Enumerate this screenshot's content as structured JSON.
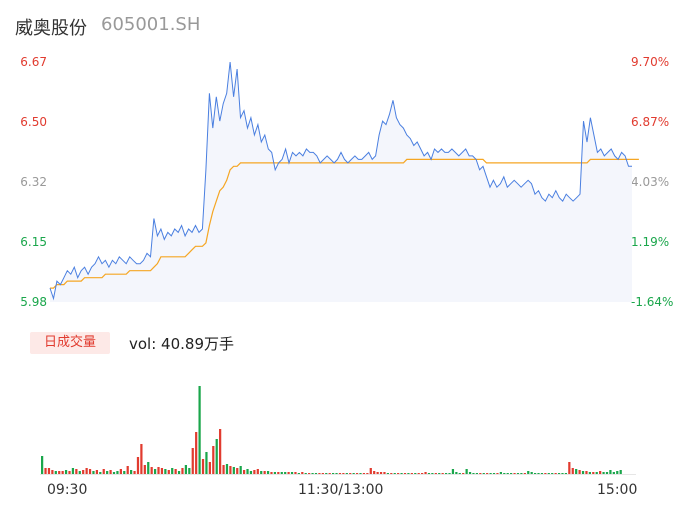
{
  "header": {
    "name": "威奥股份",
    "code": "605001.SH"
  },
  "axis": {
    "price_ticks": [
      "6.67",
      "6.50",
      "6.32",
      "6.15",
      "5.98"
    ],
    "pct_ticks": [
      "9.70%",
      "6.87%",
      "4.03%",
      "1.19%",
      "-1.64%"
    ],
    "time_ticks": [
      "09:30",
      "11:30/13:00",
      "15:00"
    ]
  },
  "volume": {
    "badge": "日成交量",
    "label": "vol: 40.89万手"
  },
  "colors": {
    "up": "#e13b2f",
    "down": "#1aa64b",
    "neutral": "#999999",
    "price_line": "#4a7fe0",
    "avg_line": "#f5a623",
    "area": "#f4f6fc"
  },
  "chart_data": {
    "type": "line",
    "title": "威奥股份 605001.SH",
    "xlabel": "",
    "ylabel": "",
    "ylim": [
      5.98,
      6.67
    ],
    "pct_ylim": [
      -1.64,
      9.7
    ],
    "x_ticks": [
      "09:30",
      "11:30/13:00",
      "15:00"
    ],
    "series": [
      {
        "values": [
          6.02,
          5.99,
          6.04,
          6.03,
          6.05,
          6.07,
          6.06,
          6.08,
          6.05,
          6.07,
          6.08,
          6.06,
          6.08,
          6.09,
          6.11,
          6.09,
          6.1,
          6.08,
          6.1,
          6.09,
          6.11,
          6.1,
          6.09,
          6.11,
          6.1,
          6.09,
          6.09,
          6.1,
          6.12,
          6.11,
          6.22,
          6.17,
          6.19,
          6.16,
          6.18,
          6.17,
          6.19,
          6.18,
          6.2,
          6.17,
          6.19,
          6.18,
          6.2,
          6.18,
          6.19,
          6.36,
          6.58,
          6.48,
          6.57,
          6.5,
          6.55,
          6.58,
          6.67,
          6.57,
          6.65,
          6.51,
          6.53,
          6.48,
          6.51,
          6.46,
          6.49,
          6.44,
          6.46,
          6.42,
          6.41,
          6.36,
          6.38,
          6.39,
          6.42,
          6.38,
          6.41,
          6.4,
          6.41,
          6.4,
          6.42,
          6.41,
          6.41,
          6.4,
          6.38,
          6.39,
          6.4,
          6.39,
          6.38,
          6.39,
          6.41,
          6.39,
          6.38,
          6.39,
          6.4,
          6.39,
          6.39,
          6.4,
          6.41,
          6.39,
          6.4,
          6.46,
          6.5,
          6.49,
          6.52,
          6.56,
          6.51,
          6.49,
          6.48,
          6.46,
          6.45,
          6.43,
          6.44,
          6.42,
          6.4,
          6.41,
          6.39,
          6.42,
          6.41,
          6.42,
          6.41,
          6.41,
          6.42,
          6.41,
          6.4,
          6.41,
          6.42,
          6.4,
          6.4,
          6.39,
          6.36,
          6.37,
          6.34,
          6.31,
          6.33,
          6.31,
          6.32,
          6.34,
          6.31,
          6.32,
          6.33,
          6.32,
          6.31,
          6.32,
          6.33,
          6.32,
          6.29,
          6.3,
          6.28,
          6.27,
          6.29,
          6.28,
          6.3,
          6.28,
          6.27,
          6.29,
          6.28,
          6.27,
          6.28,
          6.29,
          6.5,
          6.44,
          6.51,
          6.46,
          6.41,
          6.42,
          6.4,
          6.41,
          6.42,
          6.4,
          6.39,
          6.41,
          6.4,
          6.37,
          6.37
        ],
        "color": "#4a7fe0"
      },
      {
        "values": [
          6.02,
          6.02,
          6.03,
          6.03,
          6.03,
          6.04,
          6.04,
          6.04,
          6.04,
          6.04,
          6.05,
          6.05,
          6.05,
          6.05,
          6.05,
          6.05,
          6.06,
          6.06,
          6.06,
          6.06,
          6.06,
          6.06,
          6.06,
          6.07,
          6.07,
          6.07,
          6.07,
          6.07,
          6.07,
          6.07,
          6.08,
          6.09,
          6.11,
          6.11,
          6.11,
          6.11,
          6.11,
          6.11,
          6.11,
          6.11,
          6.12,
          6.13,
          6.14,
          6.14,
          6.14,
          6.15,
          6.2,
          6.24,
          6.27,
          6.3,
          6.31,
          6.33,
          6.36,
          6.37,
          6.37,
          6.38,
          6.38,
          6.38,
          6.38,
          6.38,
          6.38,
          6.38,
          6.38,
          6.38,
          6.38,
          6.38,
          6.38,
          6.38,
          6.38,
          6.38,
          6.38,
          6.38,
          6.38,
          6.38,
          6.38,
          6.38,
          6.38,
          6.38,
          6.38,
          6.38,
          6.38,
          6.38,
          6.38,
          6.38,
          6.38,
          6.38,
          6.38,
          6.38,
          6.38,
          6.38,
          6.38,
          6.38,
          6.38,
          6.38,
          6.38,
          6.38,
          6.38,
          6.38,
          6.38,
          6.38,
          6.38,
          6.38,
          6.38,
          6.39,
          6.39,
          6.39,
          6.39,
          6.39,
          6.39,
          6.39,
          6.39,
          6.39,
          6.39,
          6.39,
          6.39,
          6.39,
          6.39,
          6.39,
          6.39,
          6.39,
          6.39,
          6.39,
          6.39,
          6.39,
          6.39,
          6.39,
          6.38,
          6.38,
          6.38,
          6.38,
          6.38,
          6.38,
          6.38,
          6.38,
          6.38,
          6.38,
          6.38,
          6.38,
          6.38,
          6.38,
          6.38,
          6.38,
          6.38,
          6.38,
          6.38,
          6.38,
          6.38,
          6.38,
          6.38,
          6.38,
          6.38,
          6.38,
          6.38,
          6.38,
          6.38,
          6.38,
          6.39,
          6.39,
          6.39,
          6.39,
          6.39,
          6.39,
          6.39,
          6.39,
          6.39,
          6.39,
          6.39,
          6.39,
          6.39,
          6.39,
          6.39
        ],
        "color": "#f5a623"
      }
    ],
    "volume_bars": [
      {
        "v": 18,
        "c": "down"
      },
      {
        "v": 6,
        "c": "up"
      },
      {
        "v": 6,
        "c": "up"
      },
      {
        "v": 4,
        "c": "up"
      },
      {
        "v": 3,
        "c": "down"
      },
      {
        "v": 3,
        "c": "up"
      },
      {
        "v": 3,
        "c": "up"
      },
      {
        "v": 4,
        "c": "down"
      },
      {
        "v": 3,
        "c": "up"
      },
      {
        "v": 6,
        "c": "down"
      },
      {
        "v": 5,
        "c": "up"
      },
      {
        "v": 3,
        "c": "down"
      },
      {
        "v": 4,
        "c": "up"
      },
      {
        "v": 6,
        "c": "up"
      },
      {
        "v": 5,
        "c": "up"
      },
      {
        "v": 3,
        "c": "down"
      },
      {
        "v": 4,
        "c": "up"
      },
      {
        "v": 2,
        "c": "down"
      },
      {
        "v": 5,
        "c": "up"
      },
      {
        "v": 3,
        "c": "down"
      },
      {
        "v": 4,
        "c": "up"
      },
      {
        "v": 2,
        "c": "down"
      },
      {
        "v": 3,
        "c": "down"
      },
      {
        "v": 5,
        "c": "up"
      },
      {
        "v": 3,
        "c": "down"
      },
      {
        "v": 8,
        "c": "up"
      },
      {
        "v": 4,
        "c": "down"
      },
      {
        "v": 3,
        "c": "up"
      },
      {
        "v": 17,
        "c": "up"
      },
      {
        "v": 30,
        "c": "up"
      },
      {
        "v": 9,
        "c": "up"
      },
      {
        "v": 12,
        "c": "down"
      },
      {
        "v": 7,
        "c": "up"
      },
      {
        "v": 5,
        "c": "down"
      },
      {
        "v": 7,
        "c": "up"
      },
      {
        "v": 6,
        "c": "up"
      },
      {
        "v": 5,
        "c": "down"
      },
      {
        "v": 4,
        "c": "up"
      },
      {
        "v": 6,
        "c": "down"
      },
      {
        "v": 5,
        "c": "up"
      },
      {
        "v": 3,
        "c": "down"
      },
      {
        "v": 6,
        "c": "up"
      },
      {
        "v": 9,
        "c": "down"
      },
      {
        "v": 6,
        "c": "down"
      },
      {
        "v": 26,
        "c": "up"
      },
      {
        "v": 42,
        "c": "up"
      },
      {
        "v": 88,
        "c": "down"
      },
      {
        "v": 15,
        "c": "up"
      },
      {
        "v": 22,
        "c": "down"
      },
      {
        "v": 12,
        "c": "up"
      },
      {
        "v": 28,
        "c": "up"
      },
      {
        "v": 35,
        "c": "down"
      },
      {
        "v": 45,
        "c": "up"
      },
      {
        "v": 9,
        "c": "up"
      },
      {
        "v": 10,
        "c": "down"
      },
      {
        "v": 8,
        "c": "up"
      },
      {
        "v": 7,
        "c": "down"
      },
      {
        "v": 6,
        "c": "up"
      },
      {
        "v": 8,
        "c": "down"
      },
      {
        "v": 4,
        "c": "up"
      },
      {
        "v": 5,
        "c": "down"
      },
      {
        "v": 3,
        "c": "down"
      },
      {
        "v": 4,
        "c": "up"
      },
      {
        "v": 5,
        "c": "up"
      },
      {
        "v": 3,
        "c": "down"
      },
      {
        "v": 3,
        "c": "up"
      },
      {
        "v": 3,
        "c": "down"
      },
      {
        "v": 2,
        "c": "up"
      },
      {
        "v": 2,
        "c": "down"
      },
      {
        "v": 2,
        "c": "up"
      },
      {
        "v": 2,
        "c": "down"
      },
      {
        "v": 2,
        "c": "down"
      },
      {
        "v": 2,
        "c": "up"
      },
      {
        "v": 2,
        "c": "down"
      },
      {
        "v": 2,
        "c": "up"
      },
      {
        "v": 1,
        "c": "down"
      },
      {
        "v": 2,
        "c": "up"
      },
      {
        "v": 1,
        "c": "down"
      },
      {
        "v": 1,
        "c": "up"
      },
      {
        "v": 1,
        "c": "down"
      },
      {
        "v": 1,
        "c": "down"
      },
      {
        "v": 1,
        "c": "up"
      },
      {
        "v": 1,
        "c": "up"
      },
      {
        "v": 1,
        "c": "down"
      },
      {
        "v": 1,
        "c": "up"
      },
      {
        "v": 1,
        "c": "down"
      },
      {
        "v": 1,
        "c": "down"
      },
      {
        "v": 1,
        "c": "up"
      },
      {
        "v": 1,
        "c": "up"
      },
      {
        "v": 1,
        "c": "down"
      },
      {
        "v": 1,
        "c": "up"
      },
      {
        "v": 1,
        "c": "down"
      },
      {
        "v": 1,
        "c": "up"
      },
      {
        "v": 1,
        "c": "down"
      },
      {
        "v": 1,
        "c": "up"
      },
      {
        "v": 1,
        "c": "up"
      },
      {
        "v": 6,
        "c": "up"
      },
      {
        "v": 3,
        "c": "up"
      },
      {
        "v": 2,
        "c": "up"
      },
      {
        "v": 2,
        "c": "up"
      },
      {
        "v": 2,
        "c": "up"
      },
      {
        "v": 1,
        "c": "down"
      },
      {
        "v": 1,
        "c": "up"
      },
      {
        "v": 1,
        "c": "down"
      },
      {
        "v": 1,
        "c": "up"
      },
      {
        "v": 1,
        "c": "down"
      },
      {
        "v": 1,
        "c": "up"
      },
      {
        "v": 1,
        "c": "down"
      },
      {
        "v": 1,
        "c": "up"
      },
      {
        "v": 1,
        "c": "down"
      },
      {
        "v": 1,
        "c": "up"
      },
      {
        "v": 1,
        "c": "up"
      },
      {
        "v": 2,
        "c": "up"
      },
      {
        "v": 1,
        "c": "down"
      },
      {
        "v": 1,
        "c": "down"
      },
      {
        "v": 1,
        "c": "up"
      },
      {
        "v": 1,
        "c": "down"
      },
      {
        "v": 1,
        "c": "up"
      },
      {
        "v": 1,
        "c": "down"
      },
      {
        "v": 1,
        "c": "down"
      },
      {
        "v": 5,
        "c": "down"
      },
      {
        "v": 2,
        "c": "down"
      },
      {
        "v": 1,
        "c": "down"
      },
      {
        "v": 1,
        "c": "up"
      },
      {
        "v": 5,
        "c": "down"
      },
      {
        "v": 2,
        "c": "down"
      },
      {
        "v": 1,
        "c": "down"
      },
      {
        "v": 1,
        "c": "down"
      },
      {
        "v": 1,
        "c": "up"
      },
      {
        "v": 1,
        "c": "down"
      },
      {
        "v": 1,
        "c": "up"
      },
      {
        "v": 1,
        "c": "down"
      },
      {
        "v": 1,
        "c": "down"
      },
      {
        "v": 1,
        "c": "up"
      },
      {
        "v": 2,
        "c": "down"
      },
      {
        "v": 1,
        "c": "down"
      },
      {
        "v": 1,
        "c": "down"
      },
      {
        "v": 1,
        "c": "down"
      },
      {
        "v": 1,
        "c": "up"
      },
      {
        "v": 1,
        "c": "down"
      },
      {
        "v": 1,
        "c": "down"
      },
      {
        "v": 1,
        "c": "up"
      },
      {
        "v": 3,
        "c": "down"
      },
      {
        "v": 2,
        "c": "down"
      },
      {
        "v": 1,
        "c": "down"
      },
      {
        "v": 1,
        "c": "down"
      },
      {
        "v": 1,
        "c": "down"
      },
      {
        "v": 1,
        "c": "up"
      },
      {
        "v": 1,
        "c": "down"
      },
      {
        "v": 1,
        "c": "down"
      },
      {
        "v": 1,
        "c": "up"
      },
      {
        "v": 1,
        "c": "down"
      },
      {
        "v": 1,
        "c": "down"
      },
      {
        "v": 1,
        "c": "down"
      },
      {
        "v": 12,
        "c": "up"
      },
      {
        "v": 6,
        "c": "up"
      },
      {
        "v": 5,
        "c": "down"
      },
      {
        "v": 4,
        "c": "up"
      },
      {
        "v": 3,
        "c": "down"
      },
      {
        "v": 3,
        "c": "up"
      },
      {
        "v": 2,
        "c": "down"
      },
      {
        "v": 2,
        "c": "up"
      },
      {
        "v": 2,
        "c": "down"
      },
      {
        "v": 3,
        "c": "up"
      },
      {
        "v": 2,
        "c": "down"
      },
      {
        "v": 2,
        "c": "down"
      },
      {
        "v": 4,
        "c": "down"
      },
      {
        "v": 2,
        "c": "down"
      },
      {
        "v": 3,
        "c": "down"
      },
      {
        "v": 4,
        "c": "down"
      }
    ]
  }
}
